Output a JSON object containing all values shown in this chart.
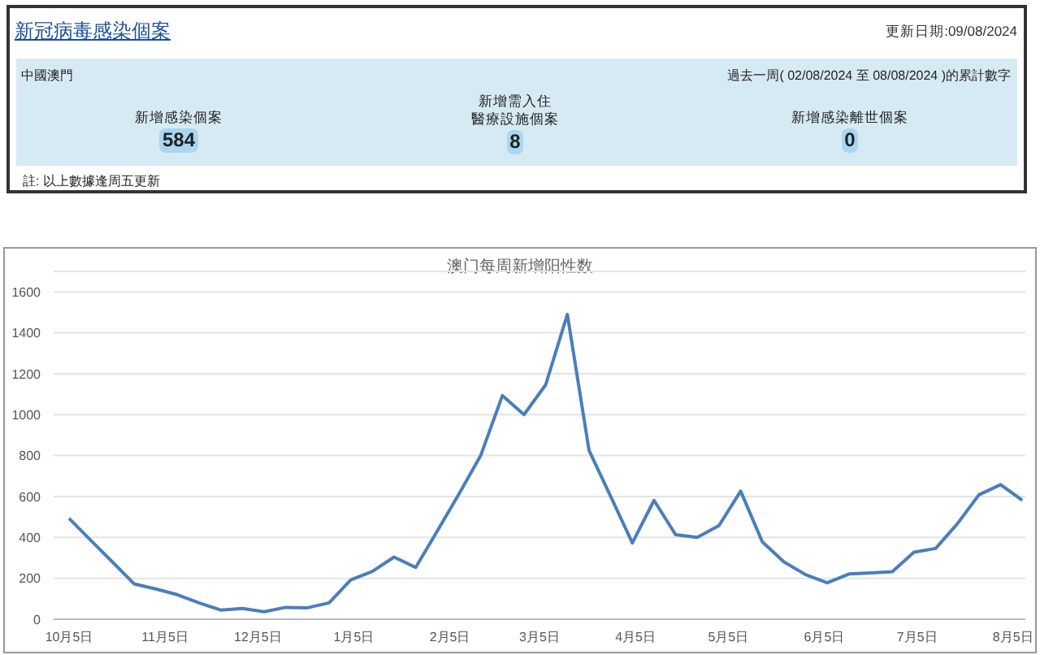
{
  "chart_data": [
    {
      "type": "other",
      "title": "新冠病毒感染個案",
      "subtitle": "更新日期:09/08/2024",
      "annotations": [
        "中國澳門",
        "過去一周( 02/08/2024 至 08/08/2024 )的累計數字",
        "註: 以上數據逢周五更新"
      ],
      "categories": [
        "新增感染個案",
        "新增需入住醫療設施個案",
        "新增感染離世個案"
      ],
      "values": [
        584,
        8,
        0
      ],
      "data_labels": true
    },
    {
      "type": "line",
      "title": "澳门每周新增阳性数",
      "x": [
        "2023-10-05",
        "2023-10-12",
        "2023-10-19",
        "2023-10-26",
        "2023-11-02",
        "2023-11-09",
        "2023-11-16",
        "2023-11-23",
        "2023-11-30",
        "2023-12-07",
        "2023-12-14",
        "2023-12-21",
        "2023-12-28",
        "2024-01-04",
        "2024-01-11",
        "2024-01-18",
        "2024-01-25",
        "2024-02-01",
        "2024-02-08",
        "2024-02-15",
        "2024-02-22",
        "2024-02-29",
        "2024-03-07",
        "2024-03-14",
        "2024-03-21",
        "2024-03-28",
        "2024-04-04",
        "2024-04-11",
        "2024-04-18",
        "2024-04-25",
        "2024-05-02",
        "2024-05-09",
        "2024-05-16",
        "2024-05-23",
        "2024-05-30",
        "2024-06-06",
        "2024-06-13",
        "2024-06-20",
        "2024-06-27",
        "2024-07-04",
        "2024-07-11",
        "2024-07-18",
        "2024-07-25",
        "2024-08-01",
        "2024-08-08"
      ],
      "series": [
        {
          "color": "#4a7ebb",
          "values": [
            493,
            386,
            280,
            173,
            148,
            120,
            80,
            45,
            53,
            37,
            58,
            56,
            80,
            192,
            234,
            304,
            253,
            432,
            613,
            800,
            1093,
            1000,
            1146,
            1490,
            826,
            600,
            373,
            581,
            413,
            400,
            458,
            626,
            378,
            280,
            218,
            178,
            221,
            226,
            232,
            328,
            346,
            466,
            608,
            658,
            581
          ]
        }
      ],
      "xlim": [
        "2023-09-30",
        "2024-08-09"
      ],
      "xticks": [
        {
          "value": "2023-10-05",
          "label": "10月5日"
        },
        {
          "value": "2023-11-05",
          "label": "11月5日"
        },
        {
          "value": "2023-12-05",
          "label": "12月5日"
        },
        {
          "value": "2024-01-05",
          "label": "1月5日"
        },
        {
          "value": "2024-02-05",
          "label": "2月5日"
        },
        {
          "value": "2024-03-05",
          "label": "3月5日"
        },
        {
          "value": "2024-04-05",
          "label": "4月5日"
        },
        {
          "value": "2024-05-05",
          "label": "5月5日"
        },
        {
          "value": "2024-06-05",
          "label": "6月5日"
        },
        {
          "value": "2024-07-05",
          "label": "7月5日"
        },
        {
          "value": "2024-08-05",
          "label": "8月5日"
        }
      ],
      "ylim": [
        0,
        1700
      ],
      "yticks": [
        0,
        200,
        400,
        600,
        800,
        1000,
        1200,
        1400,
        1600
      ],
      "grid": "y",
      "marker": "none",
      "line_style": "solid"
    }
  ]
}
